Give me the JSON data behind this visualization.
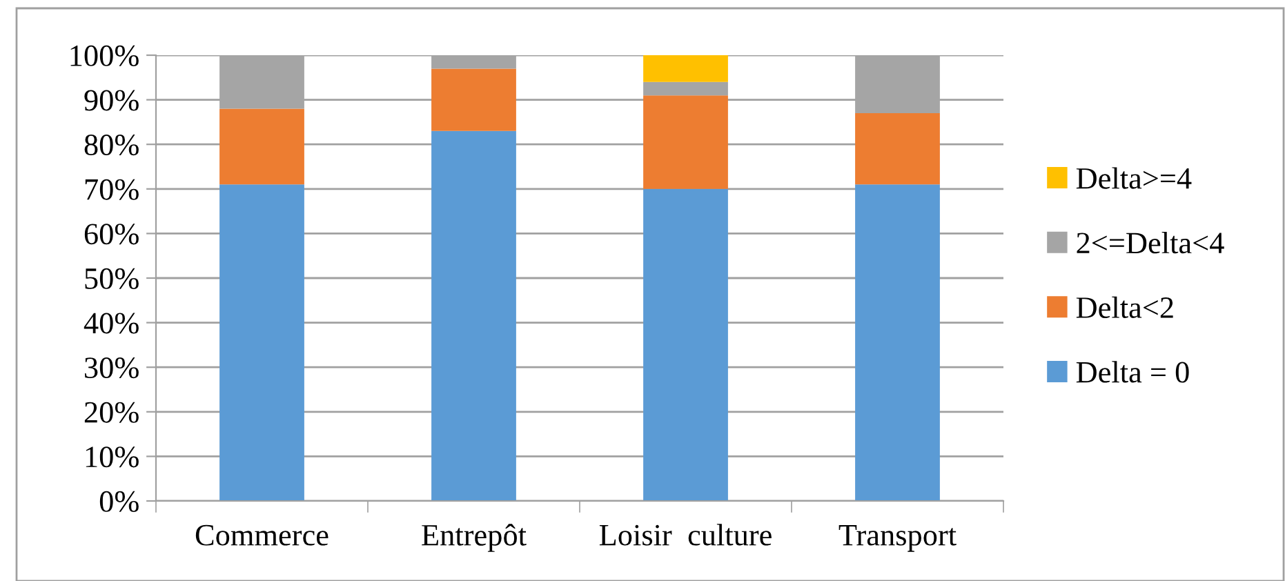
{
  "chart_data": {
    "type": "bar",
    "stacked": true,
    "categories": [
      "Commerce",
      "Entrepôt",
      "Loisir  culture",
      "Transport"
    ],
    "series": [
      {
        "name": "Delta = 0",
        "color": "#5b9bd5",
        "values": [
          71,
          83,
          70,
          71
        ]
      },
      {
        "name": "Delta<2",
        "color": "#ed7d31",
        "values": [
          17,
          14,
          21,
          16
        ]
      },
      {
        "name": "2<=Delta<4",
        "color": "#a5a5a5",
        "values": [
          12,
          3,
          3,
          13
        ]
      },
      {
        "name": "Delta>=4",
        "color": "#ffc000",
        "values": [
          0,
          0,
          6,
          0
        ]
      }
    ],
    "ylim": [
      0,
      100
    ],
    "yticks": [
      {
        "value": 0,
        "label": "0%"
      },
      {
        "value": 10,
        "label": "10%"
      },
      {
        "value": 20,
        "label": "20%"
      },
      {
        "value": 30,
        "label": "30%"
      },
      {
        "value": 40,
        "label": "40%"
      },
      {
        "value": 50,
        "label": "50%"
      },
      {
        "value": 60,
        "label": "60%"
      },
      {
        "value": 70,
        "label": "70%"
      },
      {
        "value": 80,
        "label": "80%"
      },
      {
        "value": 90,
        "label": "90%"
      },
      {
        "value": 100,
        "label": "100%"
      }
    ],
    "grid": "y",
    "legend": "right"
  }
}
